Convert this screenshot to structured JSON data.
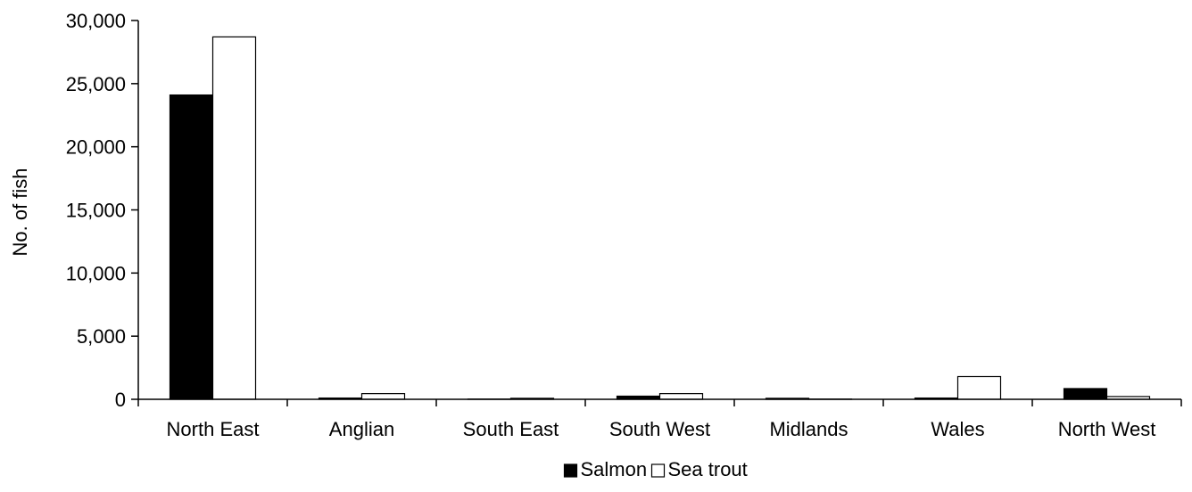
{
  "chart_data": {
    "type": "bar",
    "title": "",
    "xlabel": "",
    "ylabel": "No. of fish",
    "ylim": [
      0,
      30000
    ],
    "yticks": [
      0,
      5000,
      10000,
      15000,
      20000,
      25000,
      30000
    ],
    "ytick_labels": [
      "0",
      "5,000",
      "10,000",
      "15,000",
      "20,000",
      "25,000",
      "30,000"
    ],
    "categories": [
      "North East",
      "Anglian",
      "South East",
      "South West",
      "Midlands",
      "Wales",
      "North West"
    ],
    "series": [
      {
        "name": "Salmon",
        "color": "#000000",
        "values": [
          24100,
          100,
          20,
          250,
          80,
          100,
          850
        ]
      },
      {
        "name": "Sea trout",
        "color": "#ffffff",
        "values": [
          28700,
          450,
          80,
          450,
          20,
          1800,
          220
        ]
      }
    ],
    "grid": false,
    "legend_position": "bottom-center"
  }
}
